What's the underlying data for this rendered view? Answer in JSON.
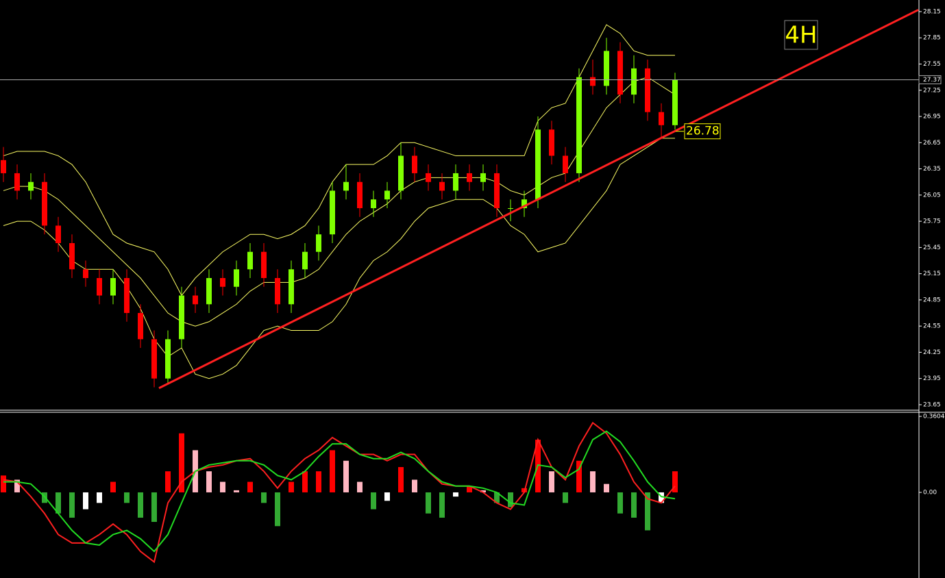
{
  "chart_data": [
    {
      "type": "candlestick",
      "title": "4H",
      "up_color": "#7fff00",
      "down_color": "#ff0000",
      "grid": false,
      "ohlc": [
        [
          26.45,
          26.6,
          26.2,
          26.3
        ],
        [
          26.3,
          26.4,
          26.0,
          26.1
        ],
        [
          26.1,
          26.3,
          26.0,
          26.2
        ],
        [
          26.2,
          26.3,
          25.6,
          25.7
        ],
        [
          25.7,
          25.8,
          25.4,
          25.5
        ],
        [
          25.5,
          25.6,
          25.1,
          25.2
        ],
        [
          25.2,
          25.3,
          25.0,
          25.1
        ],
        [
          25.1,
          25.2,
          24.8,
          24.9
        ],
        [
          24.9,
          25.2,
          24.8,
          25.1
        ],
        [
          25.1,
          25.2,
          24.6,
          24.7
        ],
        [
          24.7,
          24.8,
          24.3,
          24.4
        ],
        [
          24.4,
          24.5,
          23.85,
          23.95
        ],
        [
          23.95,
          24.5,
          23.9,
          24.4
        ],
        [
          24.4,
          25.0,
          24.3,
          24.9
        ],
        [
          24.9,
          25.0,
          24.7,
          24.8
        ],
        [
          24.8,
          25.2,
          24.7,
          25.1
        ],
        [
          25.1,
          25.2,
          24.9,
          25.0
        ],
        [
          25.0,
          25.3,
          24.9,
          25.2
        ],
        [
          25.2,
          25.5,
          25.1,
          25.4
        ],
        [
          25.4,
          25.5,
          25.0,
          25.1
        ],
        [
          25.1,
          25.2,
          24.7,
          24.8
        ],
        [
          24.8,
          25.3,
          24.7,
          25.2
        ],
        [
          25.2,
          25.5,
          25.1,
          25.4
        ],
        [
          25.4,
          25.7,
          25.3,
          25.6
        ],
        [
          25.6,
          26.2,
          25.5,
          26.1
        ],
        [
          26.1,
          26.4,
          26.0,
          26.2
        ],
        [
          26.2,
          26.3,
          25.8,
          25.9
        ],
        [
          25.9,
          26.1,
          25.8,
          26.0
        ],
        [
          26.0,
          26.2,
          25.9,
          26.1
        ],
        [
          26.1,
          26.65,
          26.0,
          26.5
        ],
        [
          26.5,
          26.6,
          26.2,
          26.3
        ],
        [
          26.3,
          26.4,
          26.1,
          26.2
        ],
        [
          26.2,
          26.3,
          26.0,
          26.1
        ],
        [
          26.1,
          26.4,
          26.0,
          26.3
        ],
        [
          26.3,
          26.4,
          26.1,
          26.2
        ],
        [
          26.2,
          26.4,
          26.1,
          26.3
        ],
        [
          26.3,
          26.4,
          25.8,
          25.9
        ],
        [
          25.9,
          26.0,
          25.75,
          25.9
        ],
        [
          25.9,
          26.1,
          25.8,
          26.0
        ],
        [
          26.0,
          26.95,
          25.9,
          26.8
        ],
        [
          26.8,
          26.9,
          26.4,
          26.5
        ],
        [
          26.5,
          26.6,
          26.2,
          26.3
        ],
        [
          26.3,
          27.5,
          26.2,
          27.4
        ],
        [
          27.4,
          27.6,
          27.2,
          27.3
        ],
        [
          27.3,
          27.85,
          27.2,
          27.7
        ],
        [
          27.7,
          27.8,
          27.1,
          27.2
        ],
        [
          27.2,
          27.65,
          27.1,
          27.5
        ],
        [
          27.5,
          27.6,
          26.9,
          27.0
        ],
        [
          27.0,
          27.1,
          26.7,
          26.85
        ],
        [
          26.85,
          27.45,
          26.8,
          27.37
        ]
      ],
      "series": [
        {
          "color": "#ffff66",
          "values": [
            26.5,
            26.55,
            26.55,
            26.55,
            26.5,
            26.4,
            26.2,
            25.9,
            25.6,
            25.5,
            25.45,
            25.4,
            25.2,
            24.9,
            25.1,
            25.25,
            25.4,
            25.5,
            25.6,
            25.6,
            25.55,
            25.6,
            25.7,
            25.9,
            26.2,
            26.4,
            26.4,
            26.4,
            26.5,
            26.65,
            26.65,
            26.6,
            26.55,
            26.5,
            26.5,
            26.5,
            26.5,
            26.5,
            26.5,
            26.9,
            27.05,
            27.1,
            27.4,
            27.7,
            28.0,
            27.9,
            27.7,
            27.65,
            27.65,
            27.65
          ]
        },
        {
          "color": "#ffff66",
          "values": [
            26.1,
            26.15,
            26.15,
            26.1,
            26.0,
            25.85,
            25.7,
            25.55,
            25.4,
            25.25,
            25.1,
            24.9,
            24.7,
            24.6,
            24.55,
            24.6,
            24.7,
            24.8,
            24.95,
            25.05,
            25.05,
            25.05,
            25.1,
            25.2,
            25.4,
            25.6,
            25.75,
            25.85,
            25.95,
            26.1,
            26.2,
            26.25,
            26.25,
            26.25,
            26.25,
            26.25,
            26.2,
            26.1,
            26.05,
            26.15,
            26.25,
            26.3,
            26.55,
            26.8,
            27.05,
            27.2,
            27.35,
            27.4,
            27.3,
            27.2
          ]
        },
        {
          "color": "#ffff66",
          "values": [
            25.7,
            25.75,
            25.75,
            25.65,
            25.5,
            25.3,
            25.2,
            25.2,
            25.2,
            25.0,
            24.75,
            24.4,
            24.2,
            24.3,
            24.0,
            23.95,
            24.0,
            24.1,
            24.3,
            24.5,
            24.55,
            24.5,
            24.5,
            24.5,
            24.6,
            24.8,
            25.1,
            25.3,
            25.4,
            25.55,
            25.75,
            25.9,
            25.95,
            26.0,
            26.0,
            26.0,
            25.9,
            25.7,
            25.6,
            25.4,
            25.45,
            25.5,
            25.7,
            25.9,
            26.1,
            26.4,
            26.5,
            26.6,
            26.7,
            26.7
          ]
        }
      ],
      "trendline": {
        "color": "#ff2020",
        "x": [
          11.35,
          66.75
        ],
        "y": [
          23.84,
          28.17
        ]
      },
      "trend_value": 26.78,
      "last_price": 27.37,
      "ylim": [
        23.587,
        28.283
      ],
      "yticks": [
        28.15,
        27.85,
        27.55,
        27.25,
        26.95,
        26.65,
        26.35,
        26.05,
        25.75,
        25.45,
        25.15,
        24.85,
        24.55,
        24.25,
        23.95,
        23.65
      ]
    },
    {
      "type": "macd",
      "histogram_colors": {
        "up_rising": "#ff0000",
        "up_falling": "#ffb6c1",
        "down_falling": "#33aa33",
        "down_rising": "#ffffff"
      },
      "histogram": [
        0.08,
        0.06,
        0.0,
        -0.05,
        -0.1,
        -0.12,
        -0.08,
        -0.05,
        0.05,
        -0.05,
        -0.12,
        -0.14,
        0.1,
        0.28,
        0.2,
        0.1,
        0.05,
        0.01,
        0.05,
        -0.05,
        -0.16,
        0.05,
        0.1,
        0.1,
        0.2,
        0.15,
        0.05,
        -0.08,
        -0.04,
        0.12,
        0.06,
        -0.1,
        -0.12,
        -0.02,
        0.03,
        0.01,
        -0.05,
        -0.07,
        0.02,
        0.25,
        0.1,
        -0.05,
        0.15,
        0.1,
        0.04,
        -0.1,
        -0.12,
        -0.18,
        -0.05,
        0.1
      ],
      "series": [
        {
          "color": "#ff2020",
          "values": [
            0.06,
            0.05,
            -0.02,
            -0.1,
            -0.2,
            -0.24,
            -0.24,
            -0.2,
            -0.15,
            -0.2,
            -0.28,
            -0.33,
            -0.05,
            0.05,
            0.1,
            0.12,
            0.13,
            0.15,
            0.16,
            0.1,
            0.02,
            0.1,
            0.16,
            0.2,
            0.26,
            0.22,
            0.18,
            0.18,
            0.15,
            0.18,
            0.18,
            0.1,
            0.04,
            0.03,
            0.03,
            0.0,
            -0.05,
            -0.08,
            0.0,
            0.25,
            0.12,
            0.06,
            0.22,
            0.33,
            0.28,
            0.18,
            0.05,
            -0.03,
            -0.05,
            0.03
          ]
        },
        {
          "color": "#22dd22",
          "values": [
            0.05,
            0.05,
            0.04,
            -0.02,
            -0.1,
            -0.18,
            -0.24,
            -0.25,
            -0.2,
            -0.18,
            -0.22,
            -0.28,
            -0.2,
            -0.05,
            0.1,
            0.13,
            0.14,
            0.15,
            0.15,
            0.13,
            0.08,
            0.06,
            0.1,
            0.17,
            0.23,
            0.23,
            0.18,
            0.16,
            0.16,
            0.19,
            0.16,
            0.1,
            0.05,
            0.03,
            0.03,
            0.02,
            0.0,
            -0.05,
            -0.06,
            0.13,
            0.12,
            0.07,
            0.11,
            0.25,
            0.29,
            0.24,
            0.15,
            0.05,
            -0.02,
            -0.03
          ]
        }
      ],
      "ylim": [
        -0.406,
        0.3766
      ],
      "yticks": [
        0.3604,
        {
          "value": 0,
          "label": "0.00"
        }
      ]
    }
  ]
}
